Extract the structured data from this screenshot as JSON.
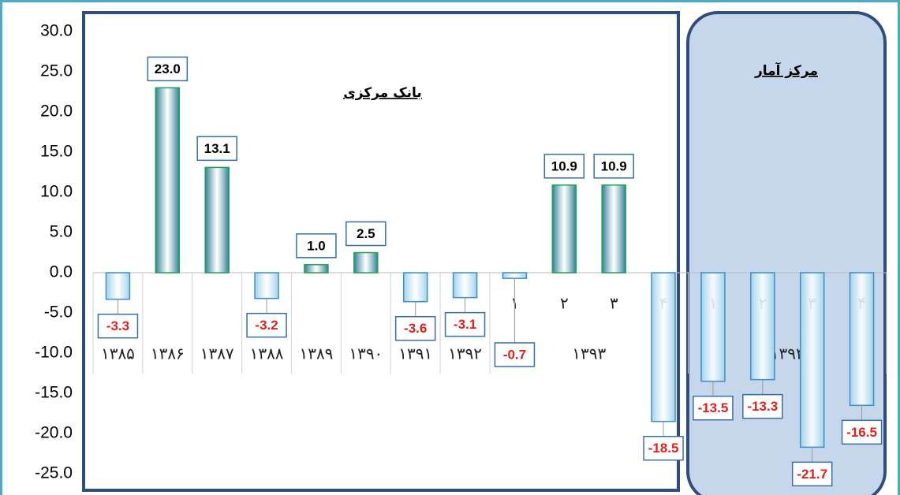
{
  "chart_data": {
    "type": "bar",
    "annotations": [
      "بانک مرکزی",
      "مرکز آمار"
    ],
    "categories": [
      "۱۳۸۵",
      "۱۳۸۶",
      "۱۳۸۷",
      "۱۳۸۸",
      "۱۳۸۹",
      "۱۳۹۰",
      "۱۳۹۱",
      "۱۳۹۲",
      "۱",
      "۲",
      "۳",
      "۴",
      "۱",
      "۲",
      "۳",
      "۴"
    ],
    "category_groups": [
      {
        "label": "۱۳۹۳",
        "span": 4
      },
      {
        "label": "۱۳۹۴",
        "span": 4
      }
    ],
    "values": [
      -3.3,
      23.0,
      13.1,
      -3.2,
      1.0,
      2.5,
      -3.6,
      -3.1,
      -0.7,
      10.9,
      10.9,
      -18.5,
      -13.5,
      -13.3,
      -21.7,
      -16.5
    ],
    "value_labels": [
      "-3.3",
      "23.0",
      "13.1",
      "-3.2",
      "1.0",
      "2.5",
      "-3.6",
      "-3.1",
      "-0.7",
      "10.9",
      "10.9",
      "-18.5",
      "-13.5",
      "-13.3",
      "-21.7",
      "-16.5"
    ],
    "colors": {
      "positive": "#2f7f9a",
      "negative": "#9fd3ec",
      "positive_label": "#000000",
      "negative_label": "#e0201b"
    },
    "ylim": [
      -25,
      30
    ],
    "yticks": [
      {
        "value": -25,
        "label": "-25.0"
      },
      {
        "value": -20,
        "label": "-20.0"
      },
      {
        "value": -15,
        "label": "-15.0"
      },
      {
        "value": -10,
        "label": "-10.0"
      },
      {
        "value": -5,
        "label": "-5.0"
      },
      {
        "value": 0,
        "label": "0.0"
      },
      {
        "value": 5,
        "label": "5.0"
      },
      {
        "value": 10,
        "label": "10.0"
      },
      {
        "value": 15,
        "label": "15.0"
      },
      {
        "value": 20,
        "label": "20.0"
      },
      {
        "value": 25,
        "label": "25.0"
      },
      {
        "value": 30,
        "label": "30.0"
      }
    ],
    "grid": false
  }
}
